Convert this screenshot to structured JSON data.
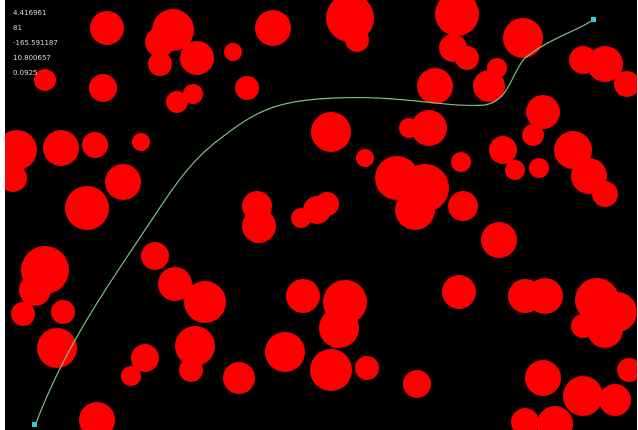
{
  "hud": {
    "readout_1": "4.416961",
    "readout_2": "81",
    "readout_3": "-165.591187",
    "readout_4": "10.800657",
    "readout_5": "0.0925"
  },
  "colors": {
    "background": "#000000",
    "obstacle": "#ff0000",
    "path": "#7fbf7f",
    "endpoint": "#33cccc",
    "frame": "#ffffff"
  },
  "scene": {
    "obstacle_shape": "circle",
    "path_shape": "curve",
    "start_marker": "square",
    "goal_marker": "square"
  }
}
